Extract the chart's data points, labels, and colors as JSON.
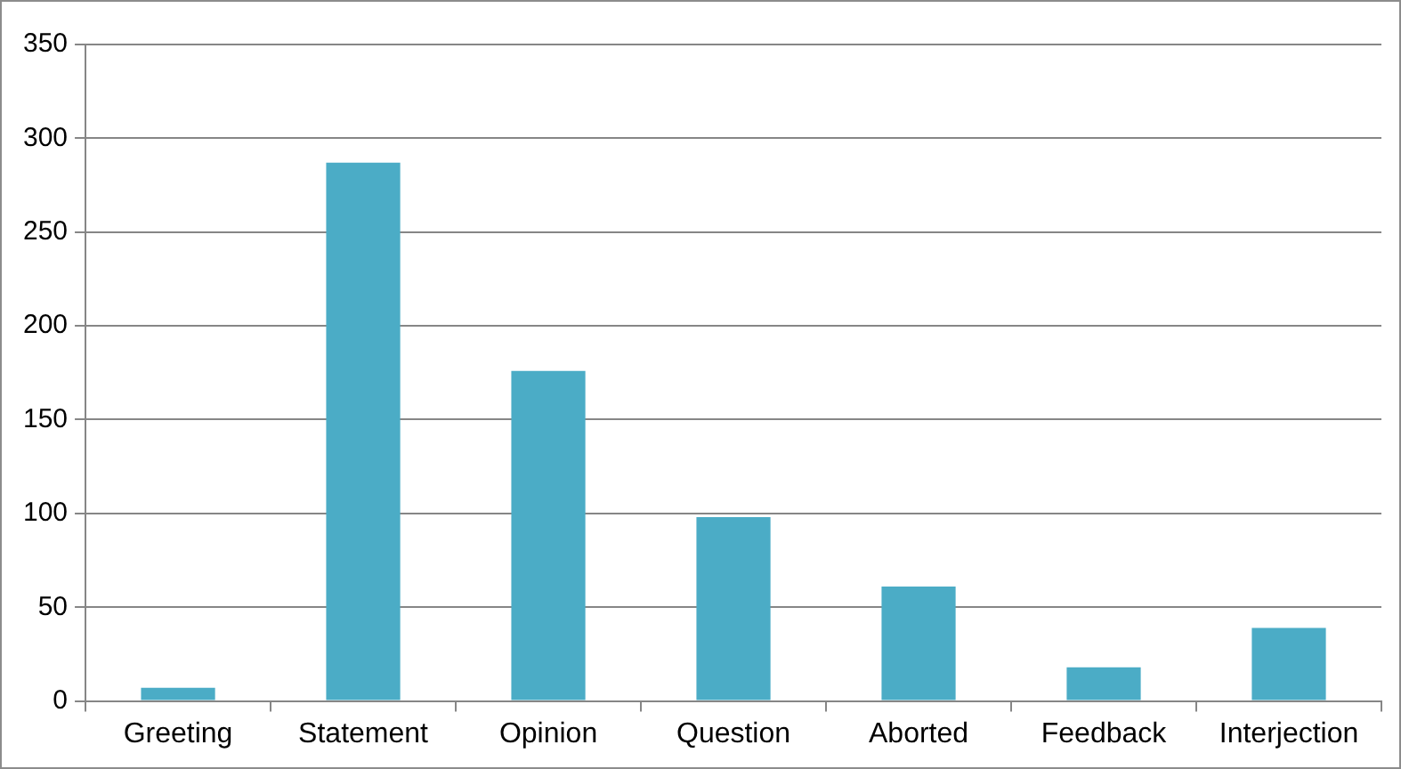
{
  "chart_data": {
    "type": "bar",
    "categories": [
      "Greeting",
      "Statement",
      "Opinion",
      "Question",
      "Aborted",
      "Feedback",
      "Interjection"
    ],
    "values": [
      7,
      287,
      176,
      98,
      61,
      18,
      39
    ],
    "color": "#4bacc6",
    "ylim": [
      0,
      350
    ],
    "yticks": [
      0,
      50,
      100,
      150,
      200,
      250,
      300,
      350
    ],
    "grid": "y"
  }
}
